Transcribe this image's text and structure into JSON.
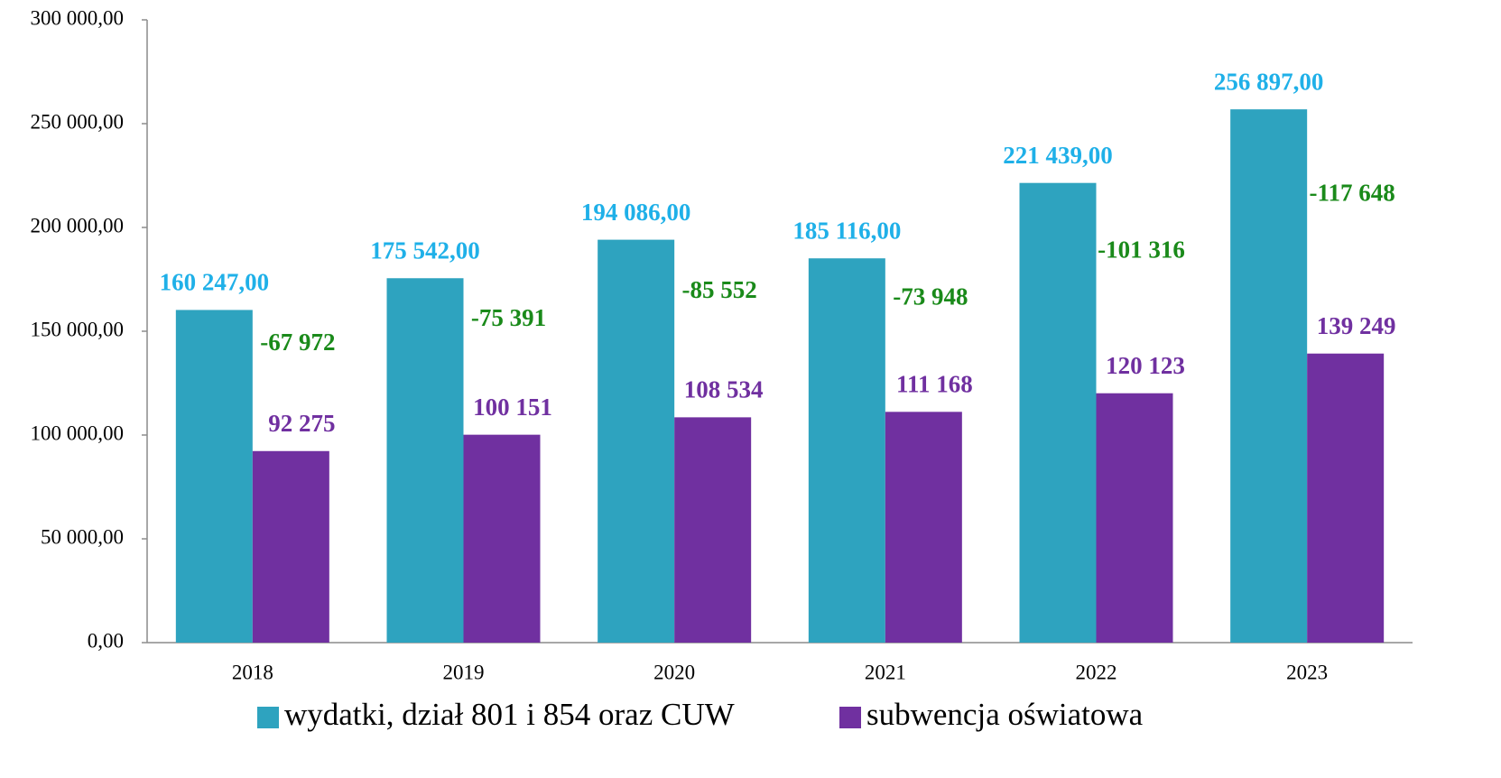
{
  "chart_data": {
    "type": "bar",
    "categories": [
      "2018",
      "2019",
      "2020",
      "2021",
      "2022",
      "2023"
    ],
    "series": [
      {
        "name": "wydatki, dział 801 i 854 oraz CUW",
        "color": "#2ea3bf",
        "label_color": "#1fb0e8",
        "values": [
          160247,
          175542,
          194086,
          185116,
          221439,
          256897
        ],
        "value_labels": [
          "160 247,00",
          "175 542,00",
          "194 086,00",
          "185 116,00",
          "221 439,00",
          "256 897,00"
        ]
      },
      {
        "name": "subwencja oświatowa",
        "color": "#7030a0",
        "label_color": "#7030a0",
        "values": [
          92275,
          100151,
          108534,
          111168,
          120123,
          139249
        ],
        "value_labels": [
          "92 275",
          "100 151",
          "108 534",
          "111 168",
          "120 123",
          "139 249"
        ]
      }
    ],
    "difference": {
      "color": "#1a8a1a",
      "values": [
        -67972,
        -75391,
        -85552,
        -73948,
        -101316,
        -117648
      ],
      "value_labels": [
        "-67 972",
        "-75 391",
        "-85 552",
        "-73 948",
        "-101 316",
        "-117 648"
      ]
    },
    "ylim": [
      0,
      300000
    ],
    "yticks": [
      {
        "value": 0,
        "label": "0,00"
      },
      {
        "value": 50000,
        "label": "50 000,00"
      },
      {
        "value": 100000,
        "label": "100 000,00"
      },
      {
        "value": 150000,
        "label": "150 000,00"
      },
      {
        "value": 200000,
        "label": "200 000,00"
      },
      {
        "value": 250000,
        "label": "250 000,00"
      },
      {
        "value": 300000,
        "label": "300 000,00"
      }
    ],
    "legend": "bottom"
  }
}
